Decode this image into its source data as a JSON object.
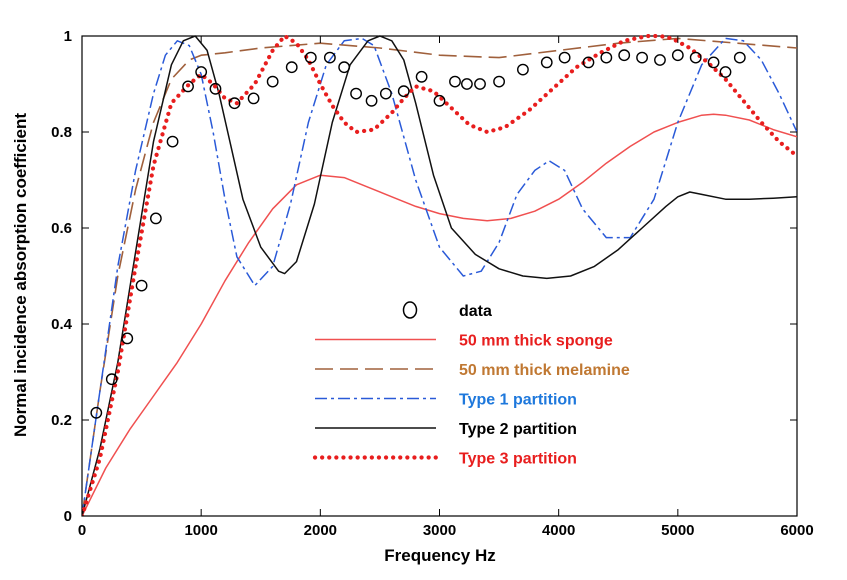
{
  "chart_data": {
    "type": "line",
    "title": "",
    "xlabel": "Frequency Hz",
    "ylabel": "Normal incidence absorption coefficient",
    "xlim": [
      0,
      6000
    ],
    "ylim": [
      0,
      1
    ],
    "x_ticks": [
      0,
      1000,
      2000,
      3000,
      4000,
      5000,
      6000
    ],
    "y_ticks": [
      0,
      0.2,
      0.4,
      0.6,
      0.8,
      1
    ],
    "x_tick_labels": [
      "0",
      "1000",
      "2000",
      "3000",
      "4000",
      "5000",
      "6000"
    ],
    "y_tick_labels": [
      "0",
      "0.2",
      "0.4",
      "0.6",
      "0.8",
      "1"
    ],
    "grid": false,
    "legend_position": "bottom-center",
    "series": [
      {
        "name": "data",
        "style": "circles",
        "color": "#000000",
        "label_color": "#000000",
        "x": [
          120,
          250,
          380,
          500,
          620,
          760,
          890,
          1000,
          1120,
          1280,
          1440,
          1600,
          1760,
          1920,
          2080,
          2200,
          2300,
          2430,
          2550,
          2700,
          2850,
          3000,
          3130,
          3230,
          3340,
          3500,
          3700,
          3900,
          4050,
          4250,
          4400,
          4550,
          4700,
          4850,
          5000,
          5150,
          5300,
          5400,
          5520
        ],
        "values": [
          0.215,
          0.285,
          0.37,
          0.48,
          0.62,
          0.78,
          0.895,
          0.925,
          0.89,
          0.86,
          0.87,
          0.905,
          0.935,
          0.955,
          0.955,
          0.935,
          0.88,
          0.865,
          0.88,
          0.885,
          0.915,
          0.865,
          0.905,
          0.9,
          0.9,
          0.905,
          0.93,
          0.945,
          0.955,
          0.945,
          0.955,
          0.96,
          0.955,
          0.95,
          0.96,
          0.955,
          0.945,
          0.925,
          0.955
        ]
      },
      {
        "name": "50 mm thick sponge",
        "style": "solid",
        "color": "#f05050",
        "label_color": "#e81e1e",
        "x": [
          0,
          200,
          400,
          600,
          800,
          1000,
          1200,
          1400,
          1600,
          1800,
          2000,
          2200,
          2400,
          2600,
          2800,
          3000,
          3200,
          3400,
          3600,
          3800,
          4000,
          4200,
          4400,
          4600,
          4800,
          5000,
          5200,
          5300,
          5400,
          5600,
          5800,
          6000
        ],
        "values": [
          0,
          0.1,
          0.18,
          0.25,
          0.32,
          0.4,
          0.49,
          0.57,
          0.64,
          0.69,
          0.71,
          0.705,
          0.685,
          0.665,
          0.645,
          0.63,
          0.62,
          0.615,
          0.62,
          0.635,
          0.66,
          0.695,
          0.735,
          0.77,
          0.8,
          0.82,
          0.835,
          0.837,
          0.835,
          0.825,
          0.805,
          0.79
        ]
      },
      {
        "name": "50 mm thick melamine",
        "style": "long-dash",
        "color": "#a0603c",
        "label_color": "#c07832",
        "x": [
          0,
          150,
          300,
          450,
          600,
          750,
          900,
          1000,
          1200,
          1500,
          2000,
          2500,
          3000,
          3500,
          4000,
          4500,
          5000,
          5500,
          6000
        ],
        "values": [
          0,
          0.26,
          0.5,
          0.68,
          0.82,
          0.91,
          0.95,
          0.96,
          0.965,
          0.975,
          0.985,
          0.975,
          0.96,
          0.955,
          0.97,
          0.985,
          0.995,
          0.985,
          0.975
        ]
      },
      {
        "name": "Type 1 partition",
        "style": "dash-dot",
        "color": "#2a5ad8",
        "label_color": "#1e78dc",
        "x": [
          0,
          150,
          300,
          450,
          600,
          700,
          800,
          900,
          1000,
          1100,
          1200,
          1300,
          1450,
          1600,
          1750,
          1900,
          2050,
          2200,
          2350,
          2450,
          2600,
          2800,
          3000,
          3200,
          3350,
          3500,
          3650,
          3800,
          3920,
          4050,
          4200,
          4400,
          4600,
          4800,
          5000,
          5200,
          5400,
          5550,
          5700,
          5850,
          6000
        ],
        "values": [
          0,
          0.26,
          0.52,
          0.72,
          0.88,
          0.96,
          0.99,
          0.98,
          0.92,
          0.8,
          0.66,
          0.54,
          0.48,
          0.52,
          0.65,
          0.82,
          0.94,
          0.99,
          0.995,
          0.98,
          0.88,
          0.7,
          0.56,
          0.5,
          0.51,
          0.57,
          0.67,
          0.72,
          0.74,
          0.72,
          0.64,
          0.58,
          0.58,
          0.66,
          0.82,
          0.94,
          0.995,
          0.99,
          0.95,
          0.88,
          0.8
        ]
      },
      {
        "name": "Type 2 partition",
        "style": "solid",
        "color": "#111111",
        "label_color": "#000000",
        "x": [
          0,
          150,
          300,
          450,
          600,
          750,
          850,
          950,
          1050,
          1150,
          1250,
          1350,
          1500,
          1650,
          1700,
          1800,
          1950,
          2100,
          2250,
          2400,
          2500,
          2600,
          2700,
          2800,
          2950,
          3100,
          3300,
          3500,
          3700,
          3900,
          4100,
          4300,
          4500,
          4700,
          4900,
          5000,
          5100,
          5200,
          5400,
          5600,
          5800,
          6000
        ],
        "values": [
          0,
          0.14,
          0.32,
          0.55,
          0.78,
          0.94,
          0.99,
          1.0,
          0.97,
          0.88,
          0.77,
          0.66,
          0.56,
          0.51,
          0.505,
          0.53,
          0.65,
          0.82,
          0.94,
          0.99,
          1.0,
          0.99,
          0.95,
          0.86,
          0.71,
          0.6,
          0.545,
          0.515,
          0.5,
          0.495,
          0.5,
          0.52,
          0.555,
          0.6,
          0.645,
          0.665,
          0.675,
          0.67,
          0.66,
          0.66,
          0.662,
          0.665
        ]
      },
      {
        "name": "Type 3 partition",
        "style": "dotted",
        "color": "#e81e1e",
        "label_color": "#e81e1e",
        "x": [
          0,
          150,
          300,
          450,
          600,
          750,
          900,
          1000,
          1100,
          1200,
          1300,
          1450,
          1600,
          1700,
          1800,
          1900,
          2000,
          2100,
          2200,
          2300,
          2450,
          2600,
          2700,
          2800,
          2950,
          3100,
          3250,
          3400,
          3550,
          3750,
          3950,
          4150,
          4350,
          4550,
          4750,
          4850,
          4950,
          5100,
          5250,
          5400,
          5550,
          5700,
          5850,
          6000
        ],
        "values": [
          0,
          0.12,
          0.3,
          0.52,
          0.73,
          0.86,
          0.9,
          0.92,
          0.9,
          0.87,
          0.86,
          0.9,
          0.97,
          1.0,
          0.985,
          0.95,
          0.9,
          0.855,
          0.82,
          0.8,
          0.805,
          0.84,
          0.87,
          0.895,
          0.885,
          0.85,
          0.815,
          0.8,
          0.81,
          0.845,
          0.89,
          0.935,
          0.965,
          0.99,
          1.0,
          1.0,
          0.995,
          0.975,
          0.945,
          0.91,
          0.865,
          0.82,
          0.78,
          0.75
        ]
      }
    ]
  }
}
